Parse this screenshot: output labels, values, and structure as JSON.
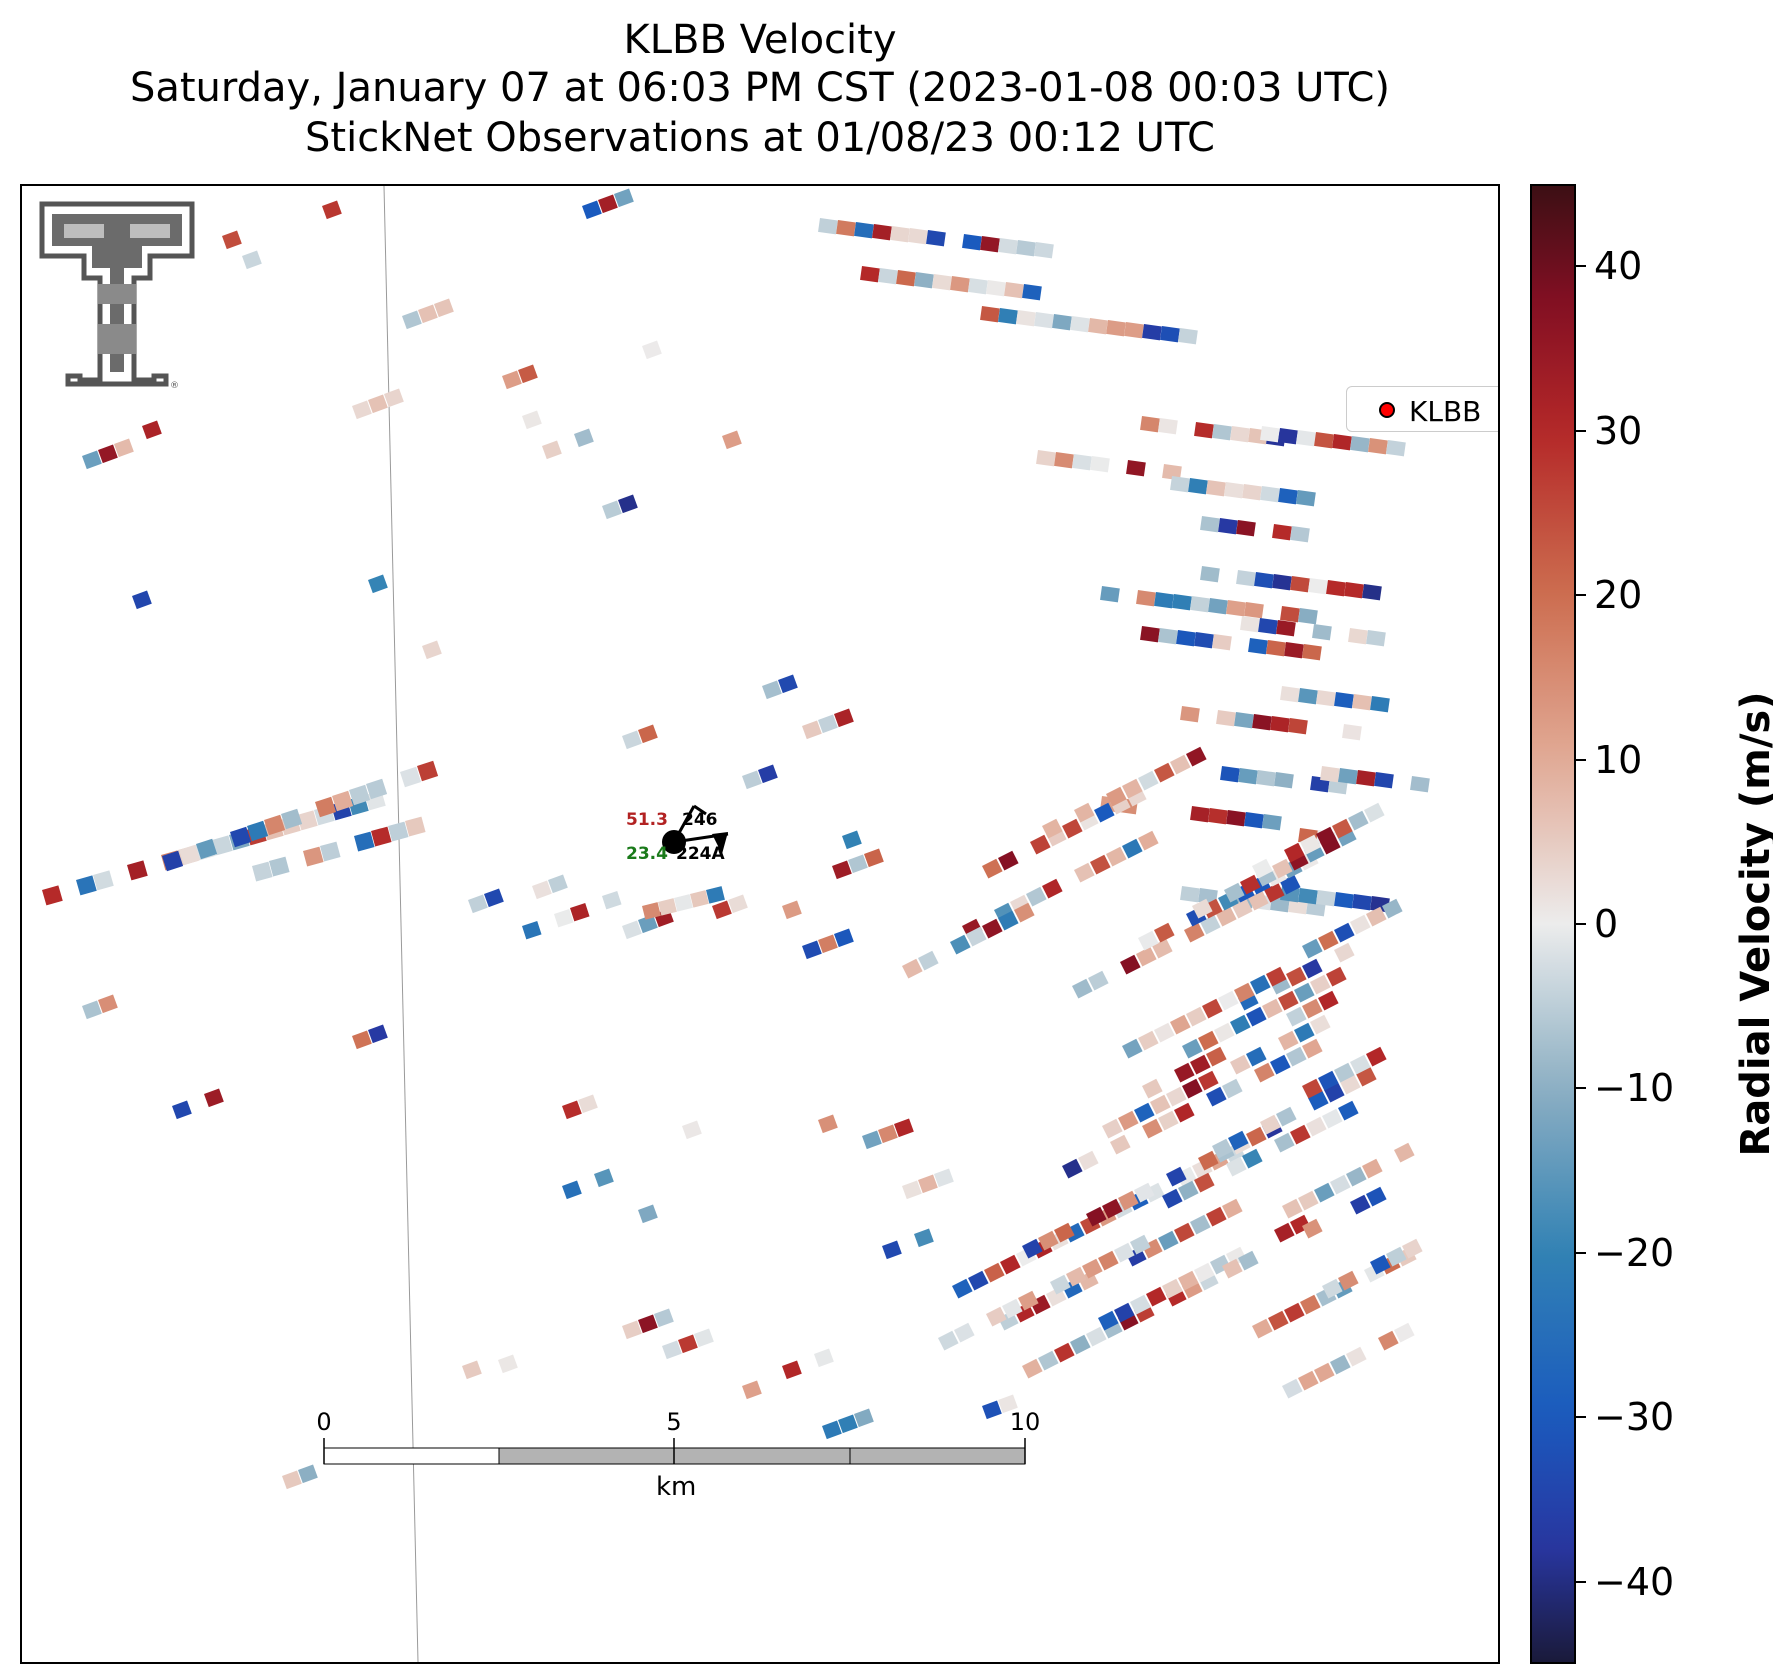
{
  "title": {
    "line1": "KLBB Velocity",
    "line2": "Saturday, January 07 at 06:03 PM CST (2023-01-08 00:03 UTC)",
    "line3": "StickNet Observations at 01/08/23 00:12 UTC"
  },
  "legend": {
    "label": "KLBB",
    "marker_color": "#ff0000"
  },
  "colorbar": {
    "title": "Radial Velocity (m/s)",
    "range": [
      -45,
      45
    ],
    "ticks": [
      40,
      30,
      20,
      10,
      0,
      -10,
      -20,
      -30,
      -40
    ],
    "tick_labels": [
      "40",
      "30",
      "20",
      "10",
      "0",
      "−10",
      "−20",
      "−30",
      "−40"
    ]
  },
  "scale_bar": {
    "unit": "km",
    "labels": [
      "0",
      "5",
      "10"
    ]
  },
  "station": {
    "temperature": "51.3",
    "dewpoint": "23.4",
    "id_top": "246",
    "id_bottom": "224A",
    "temperature_color": "#b22222",
    "dewpoint_color": "#1a7a1a"
  },
  "logo": {
    "name": "texas-tech-double-t-logo"
  }
}
